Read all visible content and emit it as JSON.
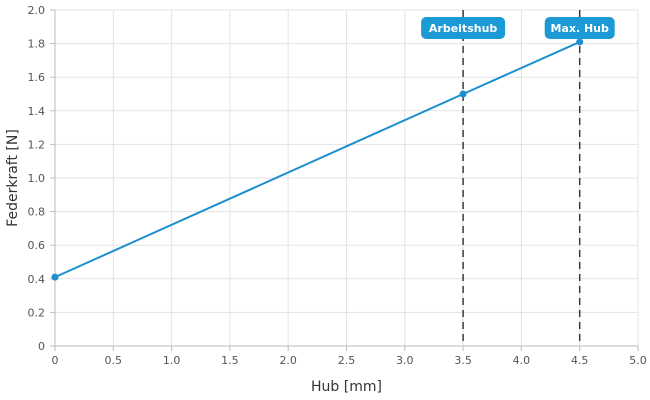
{
  "chart_data": {
    "type": "line",
    "xlabel": "Hub [mm]",
    "ylabel": "Federkraft [N]",
    "xlim": [
      0,
      5.0
    ],
    "ylim": [
      0,
      2.0
    ],
    "x_ticks": [
      "0",
      "0.5",
      "1.0",
      "1.5",
      "2.0",
      "2.5",
      "3.0",
      "3.5",
      "4.0",
      "4.5",
      "5.0"
    ],
    "y_ticks": [
      "0",
      "0.2",
      "0.4",
      "0.6",
      "0.8",
      "1.0",
      "1.2",
      "1.4",
      "1.6",
      "1.8",
      "2.0"
    ],
    "grid": true,
    "series": [
      {
        "color": "#1b8fcf",
        "points": [
          {
            "x": 0,
            "y": 0.41
          },
          {
            "x": 3.5,
            "y": 1.5
          },
          {
            "x": 4.5,
            "y": 1.81
          }
        ]
      }
    ],
    "markers": [
      {
        "label": "Arbeitshub",
        "x": 3.5,
        "color": "#1b9ad6"
      },
      {
        "label": "Max. Hub",
        "x": 4.5,
        "color": "#1b9ad6"
      }
    ]
  }
}
